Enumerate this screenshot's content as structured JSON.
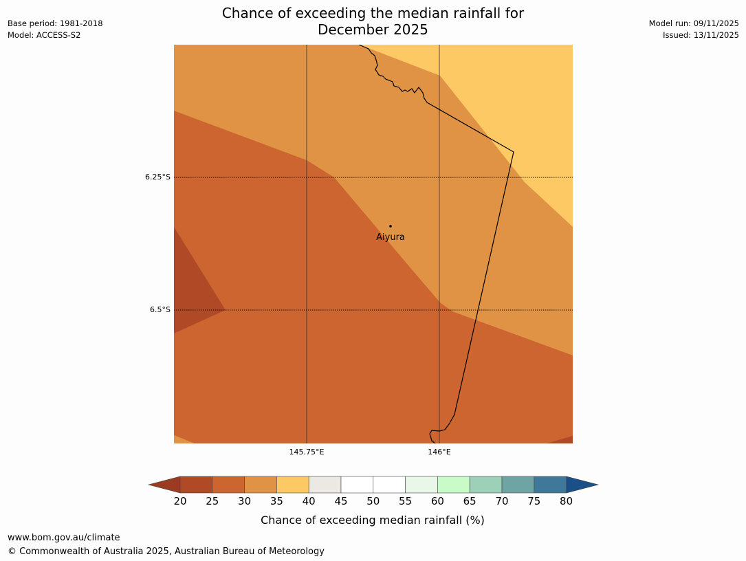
{
  "title": {
    "line1": "Chance of exceeding the median rainfall for",
    "line2": "December 2025"
  },
  "meta": {
    "base_period": "Base period: 1981-2018",
    "model": "Model: ACCESS-S2",
    "model_run": "Model run: 09/11/2025",
    "issued": "Issued: 13/11/2025"
  },
  "map": {
    "lat_labels": [
      "6.25°S",
      "6.5°S"
    ],
    "lon_labels": [
      "145.75°E",
      "146°E"
    ],
    "place": {
      "name": "Aiyura"
    },
    "region_colors": {
      "c20_25": "#b04a26",
      "c25_30": "#cc6530",
      "c30_35": "#e09344",
      "c35_40": "#fdc964"
    }
  },
  "legend": {
    "title": "Chance of exceeding median rainfall (%)",
    "ticks": [
      "20",
      "25",
      "30",
      "35",
      "40",
      "45",
      "50",
      "55",
      "60",
      "65",
      "70",
      "75",
      "80"
    ],
    "colors": [
      "#b04a26",
      "#cc6530",
      "#e09344",
      "#fdc964",
      "#ece8e4",
      "#ffffff",
      "#ffffff",
      "#e8f7e8",
      "#c8fbc8",
      "#9dd0b8",
      "#6fa4a4",
      "#3f7898"
    ],
    "under_color": "#9b3c22",
    "over_color": "#1b4f88"
  },
  "footer": {
    "url": "www.bom.gov.au/climate",
    "copyright": "© Commonwealth of Australia 2025, Australian Bureau of Meteorology"
  }
}
